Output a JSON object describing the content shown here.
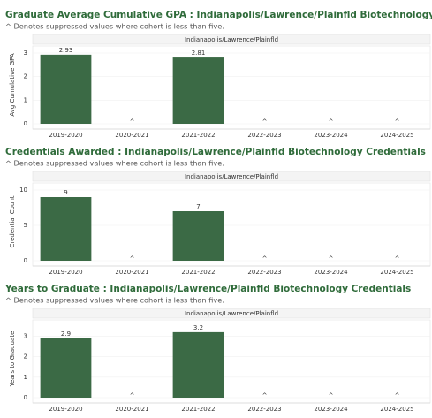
{
  "chart_data": [
    {
      "type": "bar",
      "title": "Graduate Average Cumulative GPA : Indianapolis/Lawrence/Plainfld Biotechnology Credentials",
      "subtitle": "^ Denotes suppressed values where cohort is less than five.",
      "panel_header": "Indianapolis/Lawrence/Plainfld",
      "y_label": "Avg Cumulative GPA",
      "categories": [
        "2019-2020",
        "2020-2021",
        "2021-2022",
        "2022-2023",
        "2023-2024",
        "2024-2025"
      ],
      "values": [
        2.93,
        null,
        2.81,
        null,
        null,
        null
      ],
      "value_labels": [
        null,
        "^",
        null,
        "^",
        "^",
        "^"
      ],
      "color": "#3b6a45",
      "ylim": [
        0,
        3.3
      ],
      "yticks": [
        0,
        1,
        2,
        3
      ],
      "grid": true
    },
    {
      "type": "bar",
      "title": "Credentials Awarded : Indianapolis/Lawrence/Plainfld Biotechnology Credentials",
      "subtitle": "^ Denotes suppressed values where cohort is less than five.",
      "panel_header": "Indianapolis/Lawrence/Plainfld",
      "y_label": "Credential Count",
      "categories": [
        "2019-2020",
        "2020-2021",
        "2021-2022",
        "2022-2023",
        "2023-2024",
        "2024-2025"
      ],
      "values": [
        9,
        null,
        7,
        null,
        null,
        null
      ],
      "value_labels": [
        null,
        "^",
        null,
        "^",
        "^",
        "^"
      ],
      "color": "#3b6a45",
      "ylim": [
        0,
        11
      ],
      "yticks": [
        0,
        5,
        10
      ],
      "grid": true
    },
    {
      "type": "bar",
      "title": "Years to Graduate : Indianapolis/Lawrence/Plainfld Biotechnology Credentials",
      "subtitle": "^ Denotes suppressed values where cohort is less than five.",
      "panel_header": "Indianapolis/Lawrence/Plainfld",
      "y_label": "Years to Graduate",
      "categories": [
        "2019-2020",
        "2020-2021",
        "2021-2022",
        "2022-2023",
        "2023-2024",
        "2024-2025"
      ],
      "values": [
        2.9,
        null,
        3.2,
        null,
        null,
        null
      ],
      "value_labels": [
        null,
        "^",
        null,
        "^",
        "^",
        "^"
      ],
      "color": "#3b6a45",
      "ylim": [
        0,
        3.8
      ],
      "yticks": [
        0,
        1,
        2,
        3
      ],
      "grid": true
    }
  ]
}
